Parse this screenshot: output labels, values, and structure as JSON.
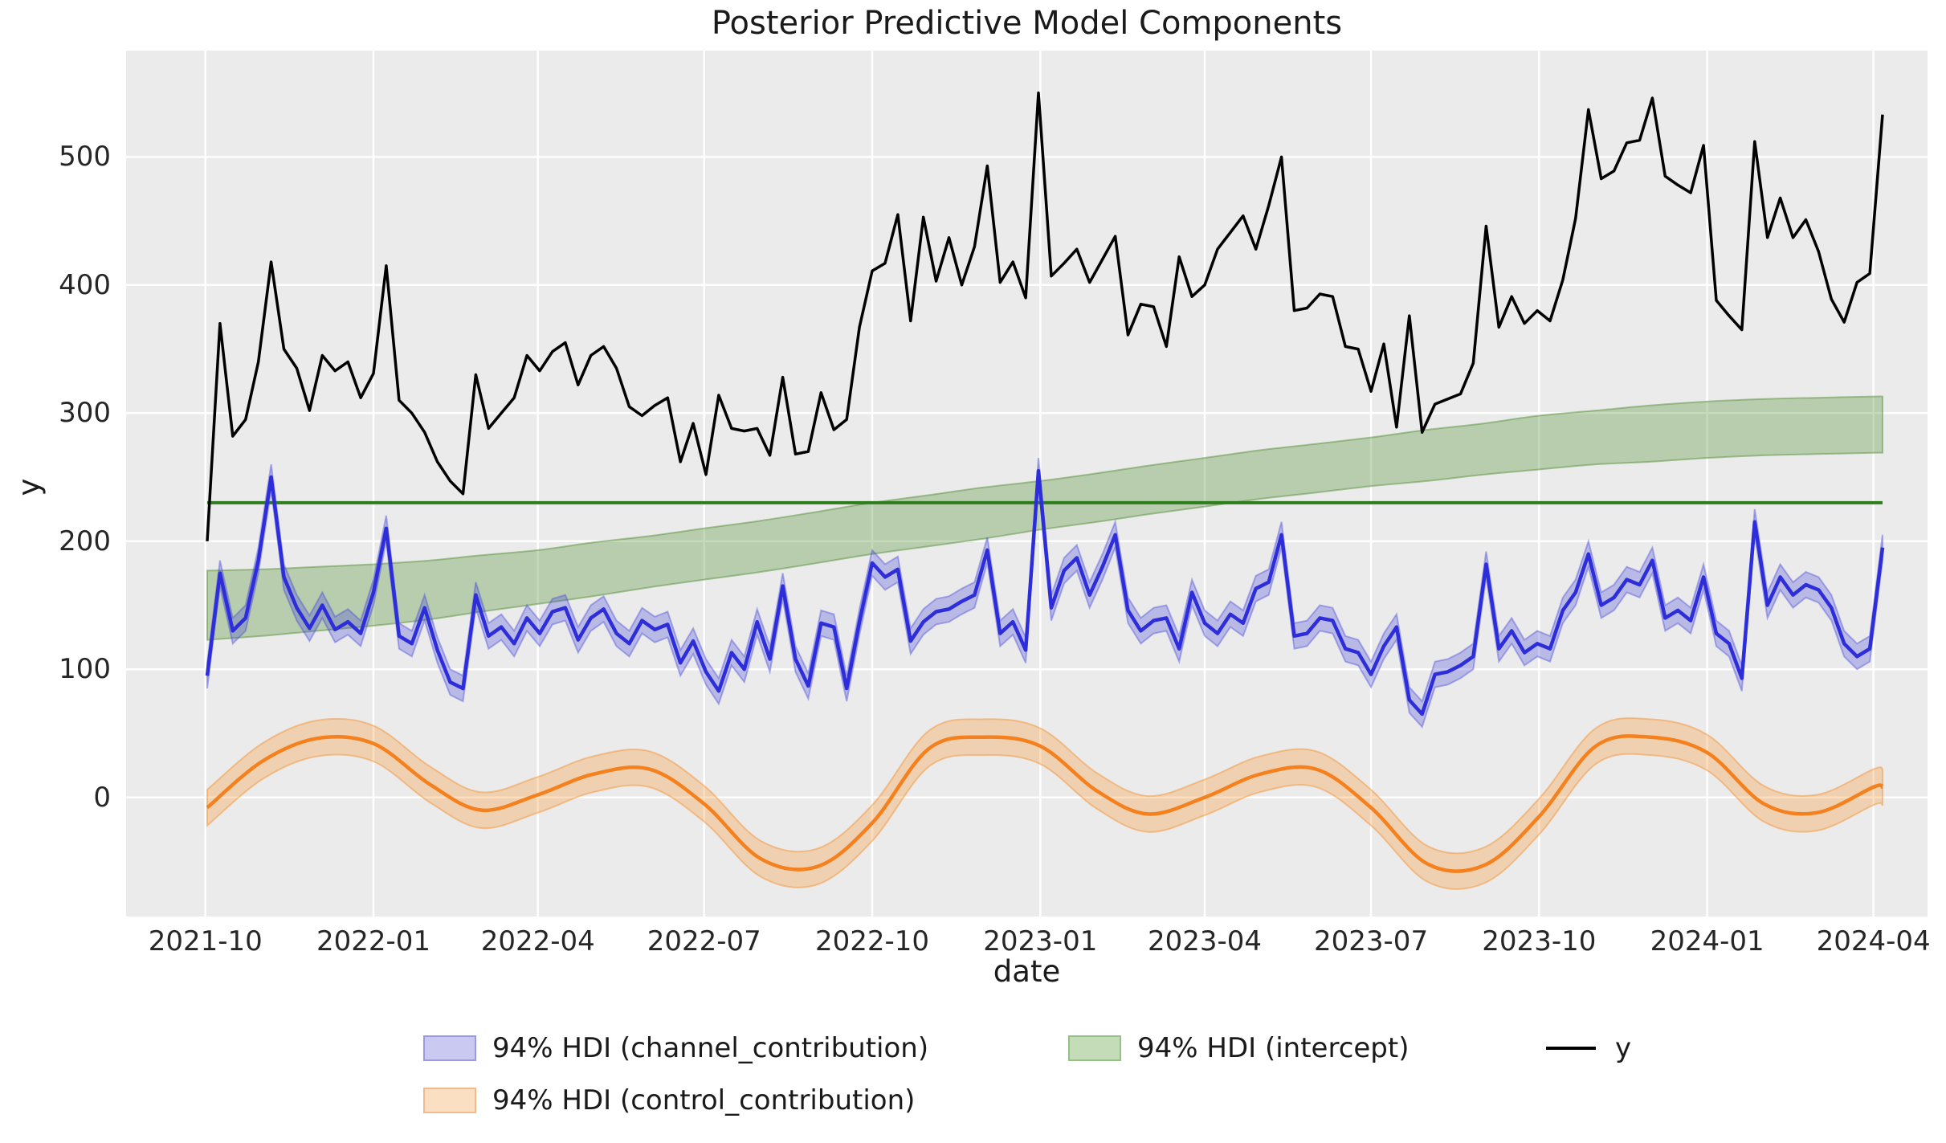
{
  "title": "Posterior Predictive Model Components",
  "axes": {
    "xlabel": "date",
    "ylabel": "y",
    "x_ticks": [
      "2021-10",
      "2022-01",
      "2022-04",
      "2022-07",
      "2022-10",
      "2023-01",
      "2023-04",
      "2023-07",
      "2023-10",
      "2024-01",
      "2024-04"
    ],
    "y_ticks": [
      "0",
      "100",
      "200",
      "300",
      "400",
      "500"
    ],
    "y_tick_values": [
      0,
      100,
      200,
      300,
      400,
      500
    ],
    "grid": "white on light-gray, both axes"
  },
  "legend": {
    "position": "below plot, two rows, frameless",
    "items": [
      {
        "label": "94% HDI (channel_contribution)",
        "swatch": "patch",
        "fill": "#c9c9f2",
        "edge": "#9a9ae4"
      },
      {
        "label": "94% HDI (intercept)",
        "swatch": "patch",
        "fill": "#c4dcb8",
        "edge": "#95c187"
      },
      {
        "label": "y",
        "swatch": "line",
        "color": "#000000"
      },
      {
        "label": "94% HDI (control_contribution)",
        "swatch": "patch",
        "fill": "#fadfc3",
        "edge": "#f2b98a"
      }
    ]
  },
  "colors": {
    "figure_bg": "#ffffff",
    "axes_bg": "#ebebeb",
    "grid": "#ffffff",
    "y_line": "#000000",
    "channel_line": "#2d2dd9",
    "channel_band": "rgba(70,70,220,0.30)",
    "channel_band_edge": "rgba(70,70,220,0.40)",
    "control_line": "#f5811e",
    "control_band": "rgba(248,155,60,0.32)",
    "control_band_edge": "rgba(244,140,40,0.45)",
    "intercept_band": "rgba(90,145,60,0.35)",
    "intercept_band_edge": "rgba(90,145,60,0.50)",
    "intercept_line": "#2e7d1c",
    "text": "#262626"
  },
  "chart_data": {
    "type": "line",
    "title": "Posterior Predictive Model Components",
    "xlabel": "date",
    "ylabel": "y",
    "x_tick_labels": [
      "2021-10",
      "2022-01",
      "2022-04",
      "2022-07",
      "2022-10",
      "2023-01",
      "2023-04",
      "2023-07",
      "2023-10",
      "2024-01",
      "2024-04"
    ],
    "ylim": [
      -93,
      583
    ],
    "x_start_date": "2021-10-02",
    "x_cadence_days": 7,
    "n_points": 132,
    "legend_position": "bottom",
    "series": [
      {
        "name": "y",
        "style": "solid black line, weekly observed data",
        "values": [
          200,
          370,
          282,
          295,
          340,
          418,
          350,
          335,
          302,
          345,
          333,
          340,
          312,
          331,
          415,
          310,
          300,
          285,
          262,
          247,
          237,
          330,
          288,
          300,
          312,
          345,
          333,
          348,
          355,
          322,
          345,
          352,
          335,
          305,
          298,
          306,
          312,
          262,
          292,
          252,
          314,
          288,
          286,
          288,
          267,
          328,
          268,
          270,
          316,
          287,
          295,
          367,
          411,
          417,
          455,
          372,
          453,
          403,
          437,
          400,
          430,
          493,
          402,
          418,
          390,
          550,
          407,
          417,
          428,
          402,
          420,
          438,
          361,
          385,
          383,
          352,
          422,
          391,
          400,
          428,
          441,
          454,
          428,
          462,
          500,
          380,
          382,
          393,
          391,
          352,
          350,
          317,
          354,
          289,
          376,
          285,
          307,
          311,
          315,
          339,
          446,
          367,
          391,
          370,
          380,
          372,
          404,
          452,
          537,
          483,
          489,
          511,
          513,
          546,
          485,
          478,
          472,
          509,
          388,
          376,
          365,
          512,
          437,
          468,
          437,
          451,
          426,
          389,
          371,
          402,
          409,
          533
        ]
      },
      {
        "name": "channel_contribution",
        "hdi_label": "94% HDI (channel_contribution)",
        "style": "blue line with light blue-violet 94% HDI band, weekly",
        "hdi_half_width": 10,
        "values": [
          95,
          175,
          130,
          140,
          185,
          250,
          172,
          148,
          132,
          150,
          131,
          137,
          128,
          160,
          210,
          126,
          120,
          148,
          115,
          90,
          85,
          158,
          126,
          133,
          120,
          140,
          128,
          145,
          148,
          123,
          140,
          147,
          128,
          120,
          138,
          131,
          135,
          105,
          122,
          98,
          83,
          113,
          100,
          137,
          108,
          165,
          108,
          87,
          136,
          133,
          85,
          137,
          183,
          172,
          178,
          122,
          137,
          145,
          147,
          153,
          158,
          193,
          128,
          137,
          115,
          255,
          148,
          177,
          187,
          158,
          180,
          205,
          146,
          130,
          138,
          140,
          116,
          160,
          136,
          128,
          143,
          136,
          163,
          168,
          205,
          126,
          128,
          140,
          138,
          116,
          113,
          96,
          118,
          133,
          76,
          65,
          96,
          98,
          103,
          110,
          182,
          116,
          130,
          113,
          120,
          116,
          146,
          160,
          190,
          150,
          156,
          170,
          166,
          185,
          140,
          146,
          138,
          172,
          128,
          120,
          93,
          215,
          150,
          172,
          158,
          166,
          162,
          148,
          120,
          110,
          116,
          195
        ]
      },
      {
        "name": "control_contribution",
        "hdi_label": "94% HDI (control_contribution)",
        "style": "orange smooth seasonal line with light orange 94% HDI band, sampled monthly",
        "cadence": "monthly",
        "months": [
          "2021-10",
          "2021-11",
          "2021-12",
          "2022-01",
          "2022-02",
          "2022-03",
          "2022-04",
          "2022-05",
          "2022-06",
          "2022-07",
          "2022-08",
          "2022-09",
          "2022-10",
          "2022-11",
          "2022-12",
          "2023-01",
          "2023-02",
          "2023-03",
          "2023-04",
          "2023-05",
          "2023-06",
          "2023-07",
          "2023-08",
          "2023-09",
          "2023-10",
          "2023-11",
          "2023-12",
          "2024-01",
          "2024-02",
          "2024-03",
          "2024-04"
        ],
        "hdi_half_width": 14,
        "values": [
          -8,
          28,
          46,
          42,
          10,
          -10,
          2,
          18,
          22,
          -5,
          -48,
          -54,
          -20,
          38,
          47,
          40,
          5,
          -13,
          0,
          18,
          22,
          -8,
          -52,
          -53,
          -15,
          40,
          47,
          35,
          -5,
          -12,
          8
        ]
      },
      {
        "name": "intercept",
        "hdi_label": "94% HDI (intercept)",
        "style": "light green 94% HDI band only (no center line), slowly increasing, sampled monthly",
        "cadence": "monthly",
        "months": [
          "2021-10",
          "2021-11",
          "2021-12",
          "2022-01",
          "2022-02",
          "2022-03",
          "2022-04",
          "2022-05",
          "2022-06",
          "2022-07",
          "2022-08",
          "2022-09",
          "2022-10",
          "2022-11",
          "2022-12",
          "2023-01",
          "2023-02",
          "2023-03",
          "2023-04",
          "2023-05",
          "2023-06",
          "2023-07",
          "2023-08",
          "2023-09",
          "2023-10",
          "2023-11",
          "2023-12",
          "2024-01",
          "2024-02",
          "2024-03",
          "2024-04"
        ],
        "mid": [
          150,
          152,
          155,
          158,
          162,
          167,
          172,
          178,
          184,
          190,
          196,
          203,
          210,
          216,
          222,
          228,
          234,
          240,
          246,
          252,
          257,
          262,
          267,
          272,
          277,
          281,
          284,
          287,
          289,
          290,
          291
        ],
        "half_width": [
          27,
          26,
          25,
          24,
          23,
          22,
          21,
          21,
          20,
          20,
          20,
          20,
          20,
          20,
          20,
          19,
          19,
          19,
          19,
          19,
          19,
          19,
          20,
          20,
          21,
          21,
          22,
          22,
          22,
          22,
          22
        ]
      },
      {
        "name": "intercept_mean_line",
        "style": "flat dark green horizontal line, no legend entry",
        "value": 230
      }
    ]
  }
}
